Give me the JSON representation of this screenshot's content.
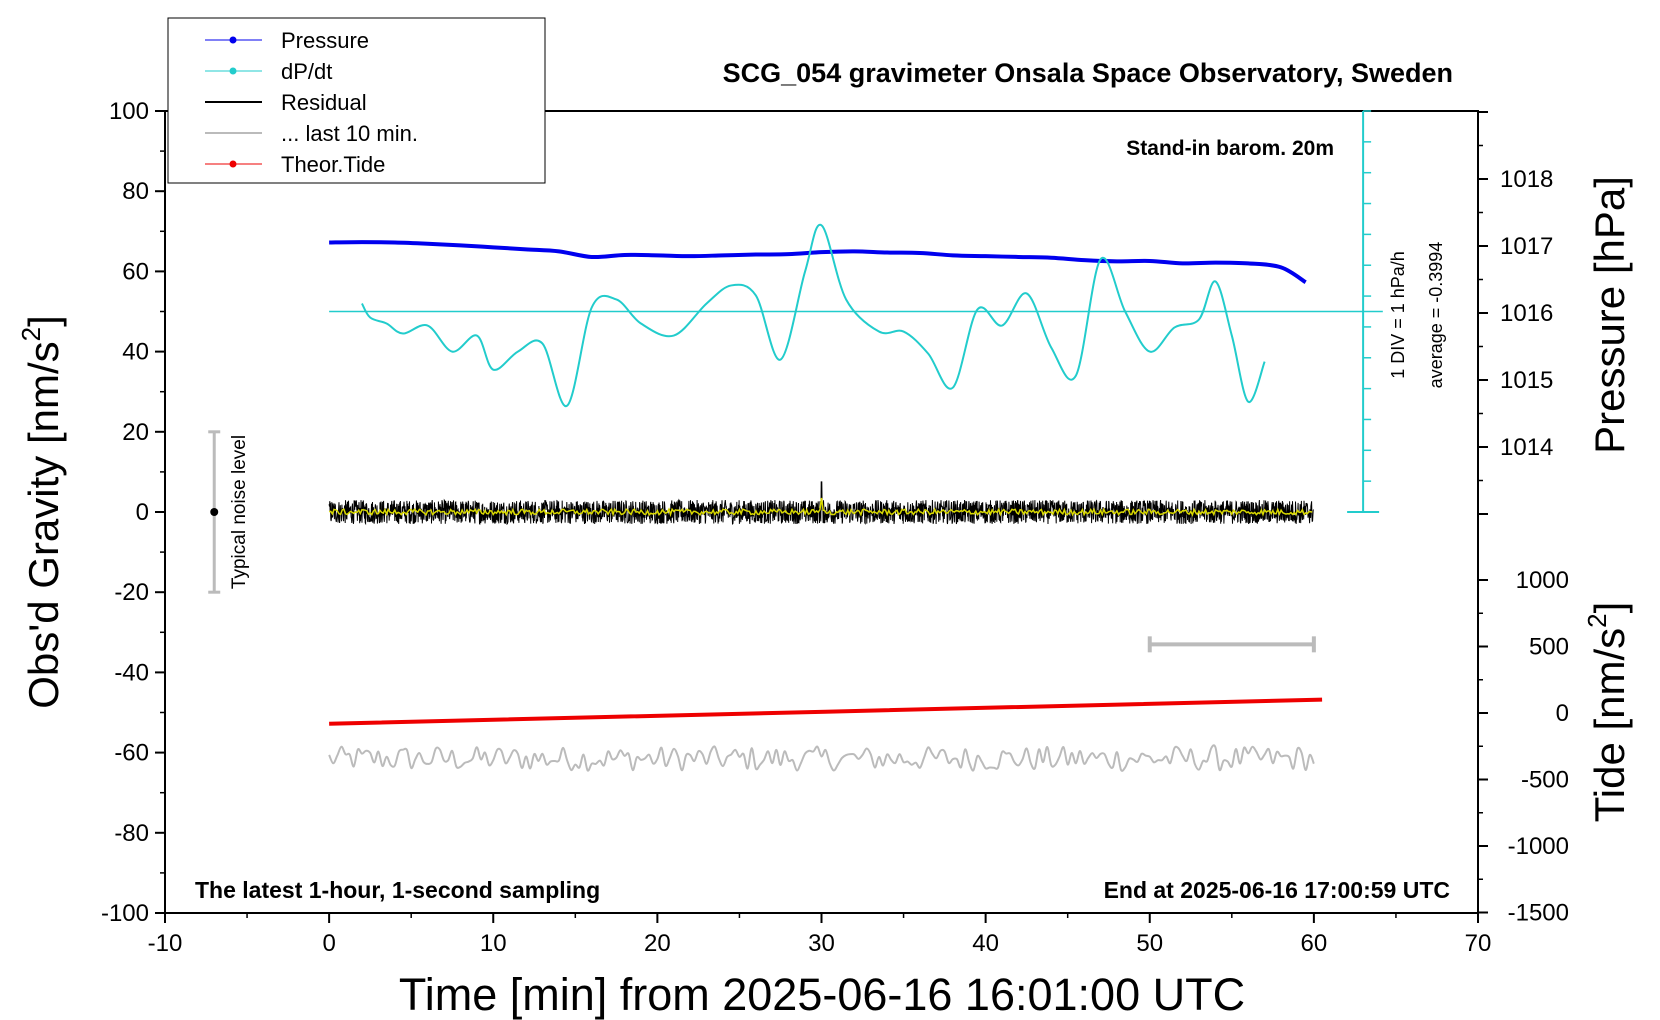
{
  "chart_data": {
    "type": "line",
    "title": "SCG_054 gravimeter Onsala Space Observatory, Sweden",
    "annotation_top_right": "Stand-in barom. 20m",
    "annotation_bottom_left": "The latest 1-hour, 1-second sampling",
    "annotation_bottom_right": "End at 2025-06-16 17:00:59 UTC",
    "noise_label": "Typical noise level",
    "noise_bar": {
      "x": -7,
      "center": 0,
      "range": [
        -20,
        20
      ]
    },
    "ten_min_bar": {
      "x_range": [
        50,
        60
      ],
      "y": -33
    },
    "dpdt_scale": {
      "div_label": "1 DIV = 1 hPa/h",
      "average_label": "average = -0.3994",
      "baseline_y": 50,
      "x": 63
    },
    "xaxis": {
      "label": "Time [min] from 2025-06-16 16:01:00 UTC",
      "range": [
        -10,
        70
      ],
      "ticks": [
        "-10",
        "0",
        "10",
        "20",
        "30",
        "40",
        "50",
        "60",
        "70"
      ]
    },
    "yaxis_left": {
      "label": "Obs'd Gravity [nm/s",
      "label_sup": "2",
      "label_end": "]",
      "range": [
        -100,
        100
      ],
      "ticks": [
        "-100",
        "-80",
        "-60",
        "-40",
        "-20",
        "0",
        "20",
        "40",
        "60",
        "80",
        "100"
      ]
    },
    "yaxis_right_pressure": {
      "label": "Pressure [hPa]",
      "ticks": [
        "1014",
        "1015",
        "1016",
        "1017",
        "1018"
      ]
    },
    "yaxis_right_tide": {
      "label": "Tide [nm/s",
      "label_sup": "2",
      "label_end": "]",
      "ticks": [
        "-1500",
        "-1000",
        "-500",
        "0",
        "500",
        "1000"
      ]
    },
    "legend": {
      "position": "top-left",
      "items": [
        {
          "label": "Pressure",
          "color": "#0000ee",
          "marker": true
        },
        {
          "label": "dP/dt",
          "color": "#22cccc",
          "marker": true
        },
        {
          "label": "Residual",
          "color": "#000000",
          "marker": false
        },
        {
          "label": "... last 10 min.",
          "color": "#bbbbbb",
          "marker": false
        },
        {
          "label": "Theor.Tide",
          "color": "#ee0000",
          "marker": true
        }
      ]
    },
    "series": [
      {
        "name": "Pressure",
        "color": "#0000ee",
        "x": [
          0,
          2,
          4,
          6,
          8,
          10,
          12,
          14,
          16,
          18,
          20,
          22,
          24,
          26,
          28,
          30,
          32,
          34,
          36,
          38,
          40,
          42,
          44,
          46,
          48,
          50,
          52,
          54,
          56,
          58,
          59.5
        ],
        "y": [
          67.2,
          67.3,
          67.2,
          66.9,
          66.5,
          66.0,
          65.5,
          65.0,
          63.6,
          64.1,
          64.0,
          63.8,
          64.0,
          64.2,
          64.3,
          64.8,
          65.0,
          64.7,
          64.6,
          64.0,
          63.8,
          63.6,
          63.4,
          62.8,
          62.5,
          62.6,
          62.0,
          62.2,
          62.0,
          61.0,
          57.3
        ]
      },
      {
        "name": "dP/dt",
        "color": "#22cccc",
        "x": [
          2,
          2.5,
          3.5,
          4.5,
          6,
          7.5,
          9,
          10,
          11.5,
          13,
          14.5,
          16,
          17.5,
          19,
          21,
          23,
          24.5,
          26,
          27.5,
          29,
          30,
          31.5,
          33.5,
          35,
          36.5,
          38,
          39.5,
          41,
          42.5,
          44,
          45.5,
          47,
          48.5,
          50,
          51.5,
          53,
          54,
          55,
          56,
          57
        ],
        "y": [
          52,
          48.5,
          47,
          44.5,
          46.5,
          40,
          44,
          35.5,
          40,
          42,
          26.5,
          51,
          53,
          47,
          44,
          52,
          56.5,
          54,
          38,
          60,
          71.5,
          53,
          45,
          45,
          39.5,
          31,
          50.5,
          46.5,
          54.5,
          41,
          34,
          63,
          50,
          40,
          46,
          48,
          57.5,
          44,
          27.5,
          37.5
        ]
      },
      {
        "name": "Theor.Tide",
        "color": "#ee0000",
        "x": [
          0,
          60.5
        ],
        "y": [
          -52.8,
          -46.8
        ]
      }
    ],
    "residual": {
      "x_range": [
        0,
        60
      ],
      "baseline": 0,
      "amplitude": 3.0,
      "spike_x": 30,
      "spike_y": 7.5
    },
    "last10min": {
      "x_range": [
        0,
        60
      ],
      "baseline": -61.5,
      "amplitude": 3.0
    }
  }
}
